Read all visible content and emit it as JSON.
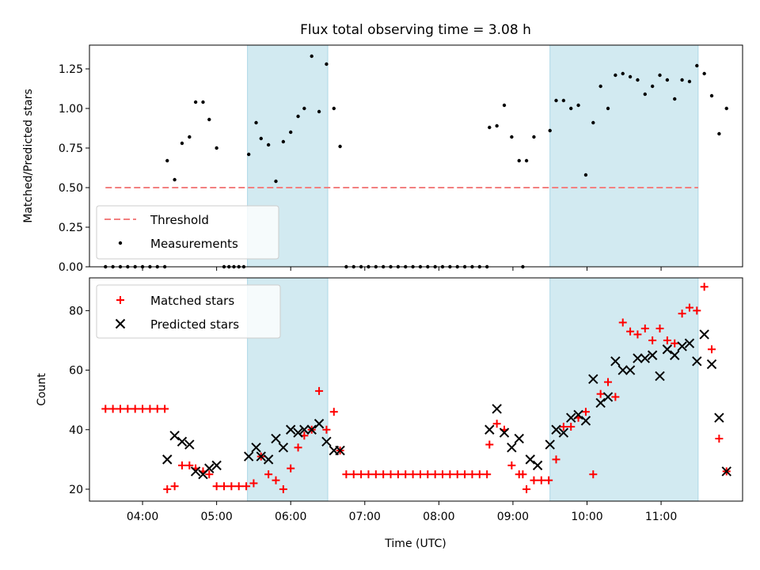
{
  "figure": {
    "title": "Flux total observing time = 3.08 h",
    "xlabel": "Time (UTC)",
    "x_tick_labels": [
      "04:00",
      "05:00",
      "06:00",
      "07:00",
      "08:00",
      "09:00",
      "10:00",
      "11:00"
    ]
  },
  "colors": {
    "shade": "#add8e6",
    "threshold": "#f28080",
    "measurement": "#000000",
    "matched": "#ff0000",
    "predicted": "#000000"
  },
  "chart_data": [
    {
      "type": "scatter",
      "ylabel": "Matched/Predicted stars",
      "xlim": [
        "03:17",
        "12:06"
      ],
      "ylim": [
        0,
        1.4
      ],
      "y_ticks": [
        "0.00",
        "0.25",
        "0.50",
        "0.75",
        "1.00",
        "1.25"
      ],
      "shaded_intervals": [
        [
          "05:25",
          "06:30"
        ],
        [
          "09:30",
          "11:30"
        ]
      ],
      "threshold": {
        "name": "Threshold",
        "value": 0.5,
        "x_range": [
          "03:30",
          "11:30"
        ]
      },
      "legend": {
        "position": "lower left",
        "entries": [
          "Threshold",
          "Measurements"
        ]
      },
      "series": [
        {
          "name": "Measurements",
          "points": [
            [
              "03:30",
              0
            ],
            [
              "03:36",
              0
            ],
            [
              "03:42",
              0
            ],
            [
              "03:48",
              0
            ],
            [
              "03:54",
              0
            ],
            [
              "04:00",
              0
            ],
            [
              "04:06",
              0
            ],
            [
              "04:12",
              0
            ],
            [
              "04:18",
              0
            ],
            [
              "04:20",
              0.67
            ],
            [
              "04:26",
              0.55
            ],
            [
              "04:32",
              0.78
            ],
            [
              "04:38",
              0.82
            ],
            [
              "04:43",
              1.04
            ],
            [
              "04:49",
              1.04
            ],
            [
              "04:54",
              0.93
            ],
            [
              "05:00",
              0.75
            ],
            [
              "05:06",
              0
            ],
            [
              "05:10",
              0
            ],
            [
              "05:14",
              0
            ],
            [
              "05:18",
              0
            ],
            [
              "05:22",
              0
            ],
            [
              "05:26",
              0.71
            ],
            [
              "05:32",
              0.91
            ],
            [
              "05:36",
              0.81
            ],
            [
              "05:42",
              0.77
            ],
            [
              "05:48",
              0.54
            ],
            [
              "05:54",
              0.79
            ],
            [
              "06:00",
              0.85
            ],
            [
              "06:06",
              0.95
            ],
            [
              "06:11",
              1.0
            ],
            [
              "06:17",
              1.33
            ],
            [
              "06:23",
              0.98
            ],
            [
              "06:29",
              1.28
            ],
            [
              "06:35",
              1.0
            ],
            [
              "06:40",
              0.76
            ],
            [
              "06:45",
              0
            ],
            [
              "06:51",
              0
            ],
            [
              "06:57",
              0
            ],
            [
              "07:03",
              0
            ],
            [
              "07:09",
              0
            ],
            [
              "07:15",
              0
            ],
            [
              "07:21",
              0
            ],
            [
              "07:27",
              0
            ],
            [
              "07:33",
              0
            ],
            [
              "07:39",
              0
            ],
            [
              "07:45",
              0
            ],
            [
              "07:51",
              0
            ],
            [
              "07:57",
              0
            ],
            [
              "08:03",
              0
            ],
            [
              "08:09",
              0
            ],
            [
              "08:15",
              0
            ],
            [
              "08:21",
              0
            ],
            [
              "08:27",
              0
            ],
            [
              "08:33",
              0
            ],
            [
              "08:39",
              0
            ],
            [
              "08:41",
              0.88
            ],
            [
              "08:47",
              0.89
            ],
            [
              "08:53",
              1.02
            ],
            [
              "08:59",
              0.82
            ],
            [
              "09:05",
              0.67
            ],
            [
              "09:08",
              0
            ],
            [
              "09:11",
              0.67
            ],
            [
              "09:17",
              0.82
            ],
            [
              "09:30",
              0.86
            ],
            [
              "09:35",
              1.05
            ],
            [
              "09:41",
              1.05
            ],
            [
              "09:47",
              1.0
            ],
            [
              "09:53",
              1.02
            ],
            [
              "09:59",
              0.58
            ],
            [
              "10:05",
              0.91
            ],
            [
              "10:11",
              1.14
            ],
            [
              "10:17",
              1.0
            ],
            [
              "10:23",
              1.21
            ],
            [
              "10:29",
              1.22
            ],
            [
              "10:35",
              1.2
            ],
            [
              "10:41",
              1.18
            ],
            [
              "10:47",
              1.09
            ],
            [
              "10:53",
              1.14
            ],
            [
              "10:59",
              1.21
            ],
            [
              "11:05",
              1.18
            ],
            [
              "11:11",
              1.06
            ],
            [
              "11:17",
              1.18
            ],
            [
              "11:23",
              1.17
            ],
            [
              "11:29",
              1.27
            ],
            [
              "11:35",
              1.22
            ],
            [
              "11:41",
              1.08
            ],
            [
              "11:47",
              0.84
            ],
            [
              "11:53",
              1.0
            ]
          ]
        }
      ]
    },
    {
      "type": "scatter",
      "ylabel": "Count",
      "xlim": [
        "03:17",
        "12:06"
      ],
      "ylim": [
        16,
        91
      ],
      "y_ticks": [
        "20",
        "40",
        "60",
        "80"
      ],
      "shaded_intervals": [
        [
          "05:25",
          "06:30"
        ],
        [
          "09:30",
          "11:30"
        ]
      ],
      "legend": {
        "position": "upper left",
        "entries": [
          "Matched stars",
          "Predicted stars"
        ]
      },
      "series": [
        {
          "name": "Matched stars",
          "marker": "plus",
          "points": [
            [
              "03:30",
              47
            ],
            [
              "03:36",
              47
            ],
            [
              "03:42",
              47
            ],
            [
              "03:48",
              47
            ],
            [
              "03:54",
              47
            ],
            [
              "04:00",
              47
            ],
            [
              "04:06",
              47
            ],
            [
              "04:12",
              47
            ],
            [
              "04:18",
              47
            ],
            [
              "04:20",
              20
            ],
            [
              "04:26",
              21
            ],
            [
              "04:32",
              28
            ],
            [
              "04:38",
              28
            ],
            [
              "04:43",
              27
            ],
            [
              "04:49",
              26
            ],
            [
              "04:54",
              25
            ],
            [
              "05:00",
              21
            ],
            [
              "05:06",
              21
            ],
            [
              "05:12",
              21
            ],
            [
              "05:18",
              21
            ],
            [
              "05:24",
              21
            ],
            [
              "05:30",
              22
            ],
            [
              "05:36",
              31
            ],
            [
              "05:42",
              25
            ],
            [
              "05:48",
              23
            ],
            [
              "05:54",
              20
            ],
            [
              "06:00",
              27
            ],
            [
              "06:06",
              34
            ],
            [
              "06:11",
              38
            ],
            [
              "06:17",
              40
            ],
            [
              "06:23",
              53
            ],
            [
              "06:29",
              40
            ],
            [
              "06:35",
              46
            ],
            [
              "06:40",
              33
            ],
            [
              "06:45",
              25
            ],
            [
              "06:51",
              25
            ],
            [
              "06:57",
              25
            ],
            [
              "07:03",
              25
            ],
            [
              "07:09",
              25
            ],
            [
              "07:15",
              25
            ],
            [
              "07:21",
              25
            ],
            [
              "07:27",
              25
            ],
            [
              "07:33",
              25
            ],
            [
              "07:39",
              25
            ],
            [
              "07:45",
              25
            ],
            [
              "07:51",
              25
            ],
            [
              "07:57",
              25
            ],
            [
              "08:03",
              25
            ],
            [
              "08:09",
              25
            ],
            [
              "08:15",
              25
            ],
            [
              "08:21",
              25
            ],
            [
              "08:27",
              25
            ],
            [
              "08:33",
              25
            ],
            [
              "08:39",
              25
            ],
            [
              "08:41",
              35
            ],
            [
              "08:47",
              42
            ],
            [
              "08:53",
              40
            ],
            [
              "08:59",
              28
            ],
            [
              "09:05",
              25
            ],
            [
              "09:08",
              25
            ],
            [
              "09:11",
              20
            ],
            [
              "09:17",
              23
            ],
            [
              "09:23",
              23
            ],
            [
              "09:29",
              23
            ],
            [
              "09:35",
              30
            ],
            [
              "09:41",
              41
            ],
            [
              "09:47",
              41
            ],
            [
              "09:53",
              44
            ],
            [
              "09:59",
              46
            ],
            [
              "10:05",
              25
            ],
            [
              "10:11",
              52
            ],
            [
              "10:17",
              56
            ],
            [
              "10:23",
              51
            ],
            [
              "10:29",
              76
            ],
            [
              "10:35",
              73
            ],
            [
              "10:41",
              72
            ],
            [
              "10:47",
              74
            ],
            [
              "10:53",
              70
            ],
            [
              "10:59",
              74
            ],
            [
              "11:05",
              70
            ],
            [
              "11:11",
              69
            ],
            [
              "11:17",
              79
            ],
            [
              "11:23",
              81
            ],
            [
              "11:29",
              80
            ],
            [
              "11:35",
              88
            ],
            [
              "11:41",
              67
            ],
            [
              "11:47",
              37
            ],
            [
              "11:53",
              26
            ]
          ]
        },
        {
          "name": "Predicted stars",
          "marker": "x",
          "points": [
            [
              "04:20",
              30
            ],
            [
              "04:26",
              38
            ],
            [
              "04:32",
              36
            ],
            [
              "04:38",
              35
            ],
            [
              "04:43",
              26
            ],
            [
              "04:49",
              25
            ],
            [
              "04:54",
              27
            ],
            [
              "05:00",
              28
            ],
            [
              "05:26",
              31
            ],
            [
              "05:32",
              34
            ],
            [
              "05:36",
              31
            ],
            [
              "05:42",
              30
            ],
            [
              "05:48",
              37
            ],
            [
              "05:54",
              34
            ],
            [
              "06:00",
              40
            ],
            [
              "06:06",
              39
            ],
            [
              "06:11",
              40
            ],
            [
              "06:17",
              40
            ],
            [
              "06:23",
              42
            ],
            [
              "06:29",
              36
            ],
            [
              "06:35",
              33
            ],
            [
              "06:40",
              33
            ],
            [
              "08:41",
              40
            ],
            [
              "08:47",
              47
            ],
            [
              "08:53",
              39
            ],
            [
              "08:59",
              34
            ],
            [
              "09:05",
              37
            ],
            [
              "09:14",
              30
            ],
            [
              "09:20",
              28
            ],
            [
              "09:30",
              35
            ],
            [
              "09:35",
              40
            ],
            [
              "09:41",
              39
            ],
            [
              "09:47",
              44
            ],
            [
              "09:53",
              45
            ],
            [
              "09:59",
              43
            ],
            [
              "10:05",
              57
            ],
            [
              "10:11",
              49
            ],
            [
              "10:17",
              51
            ],
            [
              "10:23",
              63
            ],
            [
              "10:29",
              60
            ],
            [
              "10:35",
              60
            ],
            [
              "10:41",
              64
            ],
            [
              "10:47",
              64
            ],
            [
              "10:53",
              65
            ],
            [
              "10:59",
              58
            ],
            [
              "11:05",
              67
            ],
            [
              "11:11",
              65
            ],
            [
              "11:17",
              68
            ],
            [
              "11:23",
              69
            ],
            [
              "11:29",
              63
            ],
            [
              "11:35",
              72
            ],
            [
              "11:41",
              62
            ],
            [
              "11:47",
              44
            ],
            [
              "11:53",
              26
            ]
          ]
        }
      ]
    }
  ]
}
